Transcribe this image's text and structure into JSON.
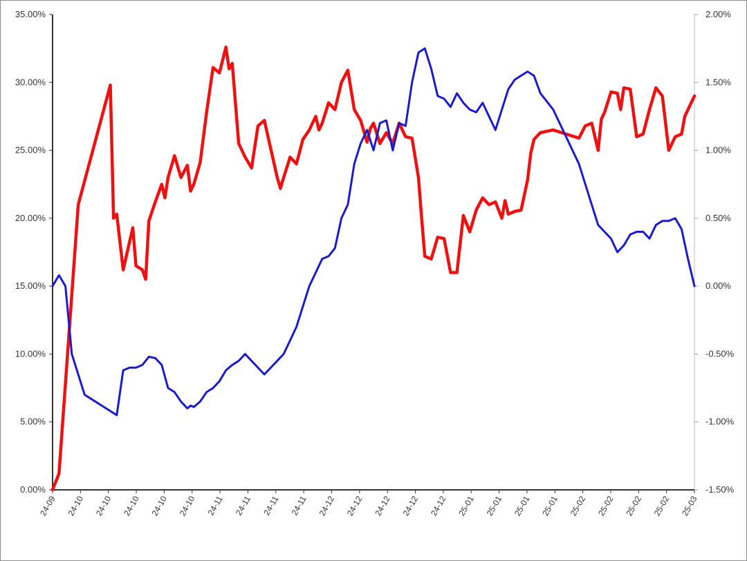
{
  "chart_data": {
    "type": "line",
    "title": "",
    "grid": false,
    "legend": "none",
    "left_axis": {
      "ylim": [
        0.0,
        35.0
      ],
      "ticks": [
        "0.00%",
        "5.00%",
        "10.00%",
        "15.00%",
        "20.00%",
        "25.00%",
        "30.00%",
        "35.00%"
      ]
    },
    "right_axis": {
      "ylim": [
        -1.5,
        2.0
      ],
      "ticks": [
        "-1.50%",
        "-1.00%",
        "-0.50%",
        "0.00%",
        "0.50%",
        "1.00%",
        "1.50%",
        "2.00%"
      ]
    },
    "x_tick_labels": [
      "24-09",
      "24-10",
      "24-10",
      "24-10",
      "24-10",
      "24-10",
      "24-11",
      "24-11",
      "24-11",
      "24-11",
      "24-12",
      "24-12",
      "24-12",
      "24-12",
      "24-12",
      "25-01",
      "25-01",
      "25-01",
      "25-01",
      "25-02",
      "25-02",
      "25-02",
      "25-02",
      "25-03"
    ],
    "x_range": [
      0,
      100
    ],
    "series": [
      {
        "axis": "left",
        "color": "#ee1111",
        "x": [
          0,
          1,
          4,
          9,
          9.5,
          10,
          11,
          12.5,
          13,
          14,
          14.5,
          15,
          16,
          17,
          17.5,
          18,
          19,
          20,
          21,
          21.5,
          22,
          23,
          24,
          25,
          26,
          27,
          27.5,
          28,
          29,
          30,
          31,
          32,
          33,
          35,
          35.5,
          36,
          37,
          38,
          39,
          40,
          41,
          41.5,
          42,
          43,
          44,
          45,
          46,
          47,
          48,
          49,
          49.5,
          50,
          51,
          52,
          53,
          54,
          55,
          56,
          57,
          57.5,
          58,
          59,
          60,
          61,
          62,
          63,
          64,
          65,
          66,
          67,
          68,
          69,
          70,
          70.5,
          71,
          72,
          73,
          74,
          74.5,
          75,
          76,
          78,
          82,
          83,
          84,
          85,
          85.5,
          86,
          87,
          88,
          88.5,
          89,
          90,
          91,
          92,
          93,
          94,
          95,
          96,
          97,
          98,
          98.5,
          99,
          100
        ],
        "values": [
          0.0,
          1.2,
          21.0,
          29.8,
          20.0,
          20.3,
          16.2,
          19.3,
          16.5,
          16.2,
          15.5,
          19.8,
          21.2,
          22.5,
          21.5,
          23.0,
          24.6,
          23.0,
          23.9,
          22.0,
          22.5,
          24.1,
          27.8,
          31.1,
          30.7,
          32.6,
          31.0,
          31.4,
          25.5,
          24.5,
          23.7,
          26.8,
          27.2,
          23.0,
          22.2,
          23.0,
          24.5,
          24.0,
          25.8,
          26.5,
          27.5,
          26.5,
          27.0,
          28.5,
          28.0,
          30.0,
          30.9,
          28.0,
          27.2,
          25.6,
          26.6,
          27.0,
          25.5,
          26.3,
          25.5,
          27.0,
          26.0,
          25.9,
          23.0,
          20.0,
          17.2,
          17.0,
          18.6,
          18.5,
          16.0,
          16.0,
          20.2,
          19.0,
          20.6,
          21.5,
          21.0,
          21.2,
          20.0,
          21.3,
          20.3,
          20.5,
          20.6,
          22.8,
          24.8,
          25.8,
          26.3,
          26.5,
          25.9,
          26.8,
          27.0,
          25.0,
          27.3,
          27.8,
          29.3,
          29.2,
          28.0,
          29.6,
          29.5,
          26.0,
          26.2,
          28.0,
          29.6,
          29.0,
          25.0,
          26.0,
          26.2,
          27.5,
          28.0,
          29.0
        ]
      },
      {
        "axis": "right",
        "color": "#1a1acc",
        "x": [
          0,
          1,
          2,
          3,
          5,
          10,
          11,
          12,
          13,
          14,
          15,
          16,
          17,
          18,
          19,
          20,
          21,
          21.5,
          22,
          23,
          24,
          25,
          26,
          27,
          28,
          29,
          30,
          31,
          32,
          33,
          34,
          35,
          36,
          37,
          38,
          39,
          40,
          41,
          42,
          43,
          44,
          45,
          46,
          47,
          48,
          49,
          50,
          51,
          52,
          53,
          54,
          55,
          56,
          57,
          58,
          59,
          60,
          61,
          62,
          63,
          64,
          65,
          66,
          67,
          68,
          69,
          70,
          71,
          72,
          73,
          74,
          75,
          76,
          78,
          80,
          82,
          84,
          85,
          86,
          87,
          88,
          89,
          90,
          91,
          92,
          93,
          94,
          95,
          96,
          97,
          98,
          99,
          100
        ],
        "values": [
          0.0,
          0.08,
          0.0,
          -0.5,
          -0.8,
          -0.95,
          -0.62,
          -0.6,
          -0.6,
          -0.58,
          -0.52,
          -0.53,
          -0.58,
          -0.75,
          -0.78,
          -0.85,
          -0.9,
          -0.88,
          -0.89,
          -0.85,
          -0.78,
          -0.75,
          -0.7,
          -0.62,
          -0.58,
          -0.55,
          -0.5,
          -0.55,
          -0.6,
          -0.65,
          -0.6,
          -0.55,
          -0.5,
          -0.4,
          -0.3,
          -0.15,
          0.0,
          0.1,
          0.2,
          0.22,
          0.28,
          0.5,
          0.6,
          0.9,
          1.05,
          1.15,
          1.0,
          1.2,
          1.22,
          1.0,
          1.2,
          1.18,
          1.5,
          1.72,
          1.75,
          1.6,
          1.4,
          1.38,
          1.32,
          1.42,
          1.35,
          1.3,
          1.28,
          1.35,
          1.25,
          1.15,
          1.3,
          1.45,
          1.52,
          1.55,
          1.58,
          1.55,
          1.42,
          1.3,
          1.1,
          0.9,
          0.6,
          0.45,
          0.4,
          0.35,
          0.25,
          0.3,
          0.38,
          0.4,
          0.4,
          0.35,
          0.45,
          0.48,
          0.48,
          0.5,
          0.42,
          0.2,
          0.0
        ]
      }
    ]
  }
}
